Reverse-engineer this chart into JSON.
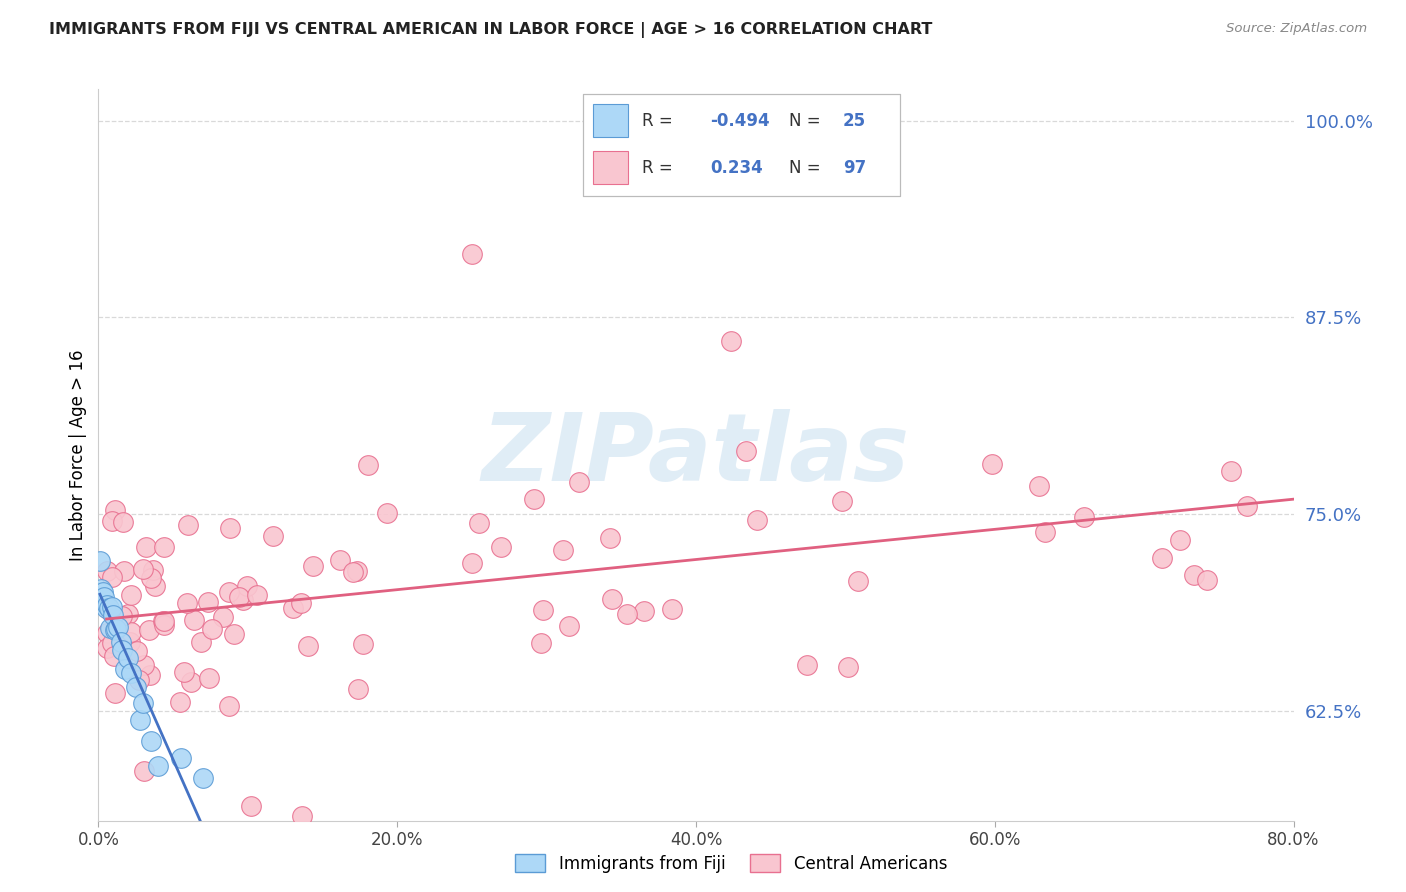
{
  "title": "IMMIGRANTS FROM FIJI VS CENTRAL AMERICAN IN LABOR FORCE | AGE > 16 CORRELATION CHART",
  "source": "Source: ZipAtlas.com",
  "ylabel": "In Labor Force | Age > 16",
  "xlim": [
    0.0,
    0.8
  ],
  "ylim": [
    0.555,
    1.02
  ],
  "ytick_values": [
    0.625,
    0.75,
    0.875,
    1.0
  ],
  "xtick_values": [
    0.0,
    0.2,
    0.4,
    0.6,
    0.8
  ],
  "fiji_R": -0.494,
  "fiji_N": 25,
  "central_R": 0.234,
  "central_N": 97,
  "fiji_color": "#ADD8F7",
  "fiji_edge_color": "#5B9BD5",
  "central_color": "#F9C6D0",
  "central_edge_color": "#E87090",
  "fiji_line_color": "#4472C4",
  "central_line_color": "#E06080",
  "watermark_color": "#C8DFF0",
  "background_color": "#ffffff",
  "grid_color": "#d0d0d0",
  "title_color": "#222222",
  "right_label_color": "#4472C4",
  "legend_r_color": "#4472C4",
  "legend_n_color": "#4472C4"
}
